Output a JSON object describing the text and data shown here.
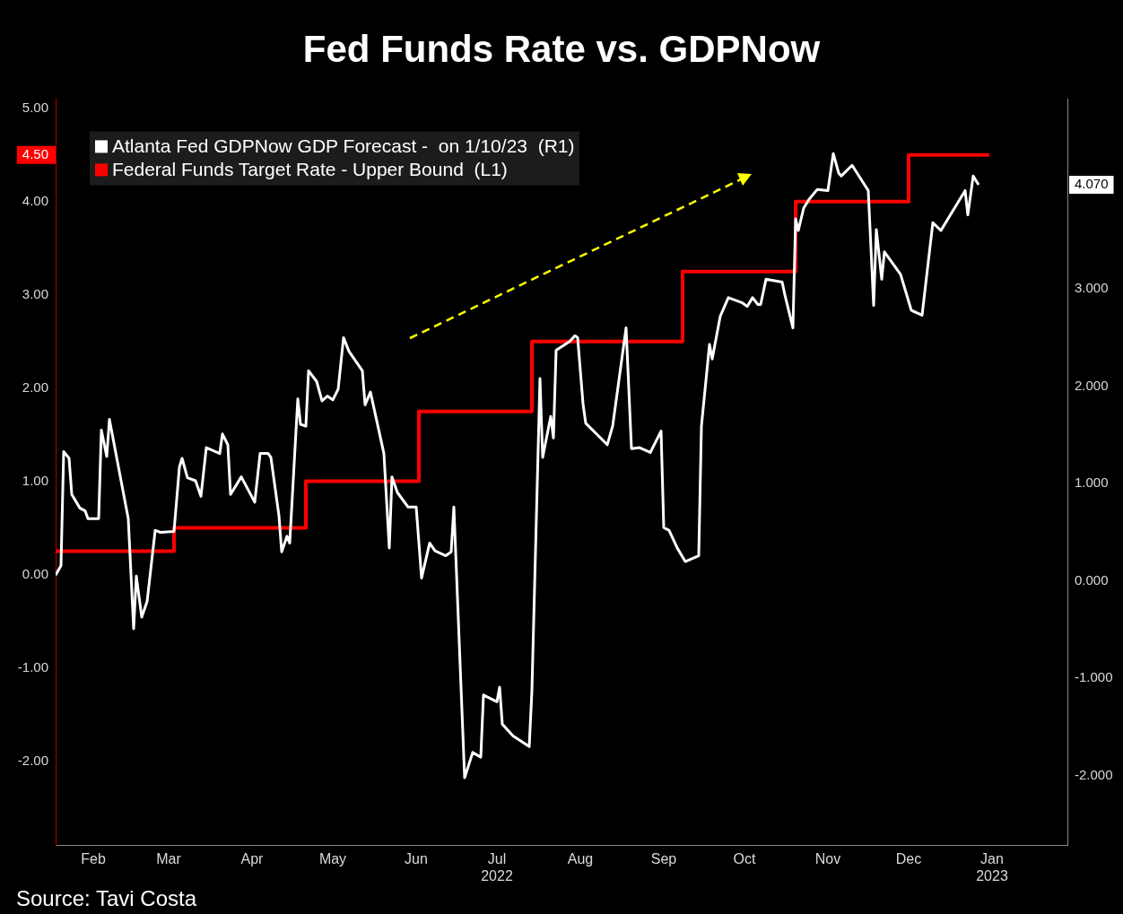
{
  "chart_data": {
    "type": "line",
    "title": "Fed Funds Rate vs. GDPNow",
    "annotations": [
      "Source: Tavi Costa"
    ],
    "legend": "top left",
    "xlim": [
      "2022-02-01",
      "2023-02-12"
    ],
    "xticks": [
      {
        "value": "2022-02-15",
        "label": "Feb"
      },
      {
        "value": "2022-03-15",
        "label": "Mar"
      },
      {
        "value": "2022-04-15",
        "label": "Apr"
      },
      {
        "value": "2022-05-15",
        "label": "May"
      },
      {
        "value": "2022-06-15",
        "label": "Jun"
      },
      {
        "value": "2022-07-15",
        "label": "Jul\n2022"
      },
      {
        "value": "2022-08-15",
        "label": "Aug"
      },
      {
        "value": "2022-09-15",
        "label": "Sep"
      },
      {
        "value": "2022-10-15",
        "label": "Oct"
      },
      {
        "value": "2022-11-15",
        "label": "Nov"
      },
      {
        "value": "2022-12-15",
        "label": "Dec"
      },
      {
        "value": "2023-01-15",
        "label": "Jan\n2023"
      }
    ],
    "ylim": [
      -2.9,
      5.1
    ],
    "yticks": [
      {
        "value": -2,
        "label": "-2.00"
      },
      {
        "value": -1,
        "label": "-1.00"
      },
      {
        "value": 0,
        "label": "0.00"
      },
      {
        "value": 1,
        "label": "1.00"
      },
      {
        "value": 2,
        "label": "2.00"
      },
      {
        "value": 3,
        "label": "3.00"
      },
      {
        "value": 4,
        "label": "4.00"
      },
      {
        "value": 4.5,
        "label": "4.50"
      },
      {
        "value": 5,
        "label": "5.00"
      }
    ],
    "y2lim": [
      -2.71,
      4.95
    ],
    "y2ticks": [
      {
        "value": -2,
        "label": "-2.000"
      },
      {
        "value": -1,
        "label": "-1.000"
      },
      {
        "value": 0,
        "label": "0.000"
      },
      {
        "value": 1,
        "label": "1.000"
      },
      {
        "value": 2,
        "label": "2.000"
      },
      {
        "value": 3,
        "label": "3.000"
      },
      {
        "value": 4.07,
        "label": "4.070"
      }
    ],
    "series": [
      {
        "name": "Atlanta Fed GDPNow GDP Forecast -  on 1/10/23  (R1)",
        "type": "line",
        "axis": "y2",
        "color": "#ffffff",
        "x": [
          "2022-02-01",
          "2022-02-03",
          "2022-02-04",
          "2022-02-06",
          "2022-02-07",
          "2022-02-10",
          "2022-02-12",
          "2022-02-13",
          "2022-02-17",
          "2022-02-18",
          "2022-02-20",
          "2022-02-21",
          "2022-02-28",
          "2022-03-02",
          "2022-03-03",
          "2022-03-05",
          "2022-03-07",
          "2022-03-10",
          "2022-03-12",
          "2022-03-17",
          "2022-03-19",
          "2022-03-20",
          "2022-03-22",
          "2022-03-25",
          "2022-03-27",
          "2022-03-29",
          "2022-04-03",
          "2022-04-04",
          "2022-04-06",
          "2022-04-07",
          "2022-04-11",
          "2022-04-16",
          "2022-04-18",
          "2022-04-21",
          "2022-04-22",
          "2022-04-25",
          "2022-04-26",
          "2022-04-28",
          "2022-04-29",
          "2022-05-02",
          "2022-05-03",
          "2022-05-05",
          "2022-05-06",
          "2022-05-09",
          "2022-05-11",
          "2022-05-13",
          "2022-05-15",
          "2022-05-17",
          "2022-05-19",
          "2022-05-21",
          "2022-05-26",
          "2022-05-27",
          "2022-05-29",
          "2022-06-03",
          "2022-06-05",
          "2022-06-06",
          "2022-06-08",
          "2022-06-12",
          "2022-06-15",
          "2022-06-17",
          "2022-06-20",
          "2022-06-22",
          "2022-06-26",
          "2022-06-28",
          "2022-06-29",
          "2022-07-03",
          "2022-07-06",
          "2022-07-09",
          "2022-07-10",
          "2022-07-15",
          "2022-07-16",
          "2022-07-17",
          "2022-07-21",
          "2022-07-27",
          "2022-07-28",
          "2022-07-31",
          "2022-08-01",
          "2022-08-04",
          "2022-08-05",
          "2022-08-06",
          "2022-08-11",
          "2022-08-13",
          "2022-08-14",
          "2022-08-16",
          "2022-08-17",
          "2022-08-25",
          "2022-08-27",
          "2022-09-01",
          "2022-09-03",
          "2022-09-06",
          "2022-09-10",
          "2022-09-14",
          "2022-09-15",
          "2022-09-17",
          "2022-09-20",
          "2022-09-23",
          "2022-09-28",
          "2022-09-29",
          "2022-10-02",
          "2022-10-03",
          "2022-10-06",
          "2022-10-09",
          "2022-10-14",
          "2022-10-16",
          "2022-10-18",
          "2022-10-20",
          "2022-10-21",
          "2022-10-23",
          "2022-10-29",
          "2022-10-30",
          "2022-11-02",
          "2022-11-03",
          "2022-11-04",
          "2022-11-06",
          "2022-11-08",
          "2022-11-11",
          "2022-11-15",
          "2022-11-17",
          "2022-11-19",
          "2022-11-20",
          "2022-11-24",
          "2022-11-30",
          "2022-12-02",
          "2022-12-03",
          "2022-12-05",
          "2022-12-06",
          "2022-12-12",
          "2022-12-16",
          "2022-12-20",
          "2022-12-24",
          "2022-12-27",
          "2023-01-05",
          "2023-01-06",
          "2023-01-08",
          "2023-01-10"
        ],
        "values": [
          0.06,
          0.16,
          1.33,
          1.26,
          0.89,
          0.75,
          0.72,
          0.64,
          0.64,
          1.55,
          1.28,
          1.66,
          0.64,
          -0.49,
          0.05,
          -0.37,
          -0.21,
          0.52,
          0.5,
          0.51,
          1.17,
          1.26,
          1.06,
          1.03,
          0.87,
          1.37,
          1.31,
          1.51,
          1.4,
          0.89,
          1.07,
          0.81,
          1.31,
          1.31,
          1.27,
          0.67,
          0.3,
          0.46,
          0.39,
          1.87,
          1.61,
          1.59,
          2.16,
          2.05,
          1.85,
          1.9,
          1.86,
          1.97,
          2.5,
          2.36,
          2.16,
          1.81,
          1.94,
          1.31,
          0.34,
          1.07,
          0.91,
          0.76,
          0.76,
          0.03,
          0.39,
          0.31,
          0.26,
          0.3,
          0.76,
          -2.02,
          -1.76,
          -1.81,
          -1.17,
          -1.24,
          -1.09,
          -1.47,
          -1.59,
          -1.7,
          -1.13,
          2.08,
          1.27,
          1.69,
          1.47,
          2.37,
          2.46,
          2.52,
          2.5,
          1.82,
          1.62,
          1.4,
          1.59,
          2.6,
          1.36,
          1.37,
          1.32,
          1.54,
          0.55,
          0.52,
          0.34,
          0.2,
          0.26,
          1.59,
          2.43,
          2.28,
          2.72,
          2.91,
          2.86,
          2.82,
          2.91,
          2.84,
          2.84,
          3.1,
          3.07,
          2.94,
          2.6,
          3.72,
          3.6,
          3.83,
          3.92,
          4.02,
          4.01,
          4.39,
          4.19,
          4.16,
          4.27,
          4.01,
          2.83,
          3.61,
          3.1,
          3.38,
          3.15,
          2.78,
          2.73,
          3.68,
          3.6,
          4.01,
          3.76,
          4.16,
          4.07
        ]
      },
      {
        "name": "Federal Funds Target Rate - Upper Bound  (L1)",
        "type": "step",
        "color": "#ff0000",
        "x": [
          "2022-02-01",
          "2022-03-17",
          "2022-05-05",
          "2022-06-16",
          "2022-07-28",
          "2022-09-22",
          "2022-11-03",
          "2022-12-15",
          "2023-01-14"
        ],
        "values": [
          0.25,
          0.5,
          1.0,
          1.75,
          2.5,
          3.25,
          4.0,
          4.5,
          4.5
        ]
      }
    ]
  }
}
